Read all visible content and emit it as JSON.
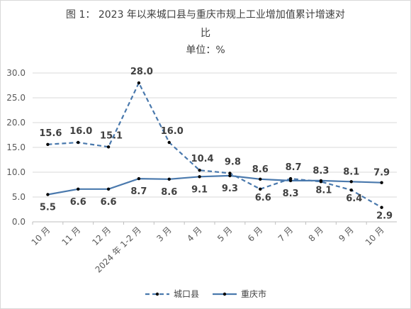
{
  "chart_data": {
    "type": "line",
    "title_line1": "图 1：  2023 年以来城口县与重庆市规上工业增加值累计增速对",
    "title_line2": "比",
    "title_line3": "单位：%",
    "categories": [
      "10 月",
      "11 月",
      "12 月",
      "2024 年 1-2 月",
      "3 月",
      "4 月",
      "5 月",
      "6 月",
      "7 月",
      "8 月",
      "9 月",
      "10 月"
    ],
    "y_ticks": [
      "0.0",
      "5.0",
      "10.0",
      "15.0",
      "20.0",
      "25.0",
      "30.0"
    ],
    "ylim": [
      0,
      30
    ],
    "series": [
      {
        "name": "城口县",
        "style": "dashed",
        "color": "#4a79ad",
        "values": [
          15.6,
          16.0,
          15.1,
          28.0,
          16.0,
          10.4,
          9.8,
          6.6,
          8.7,
          8.1,
          6.4,
          2.9
        ],
        "labels": [
          "15.6",
          "16.0",
          "15.1",
          "28.0",
          "16.0",
          "10.4",
          "9.8",
          "6.6",
          "8.7",
          "8.1",
          "6.4",
          "2.9"
        ]
      },
      {
        "name": "重庆市",
        "style": "solid",
        "color": "#4a79ad",
        "values": [
          5.5,
          6.6,
          6.6,
          8.7,
          8.6,
          9.1,
          9.3,
          8.6,
          8.3,
          8.3,
          8.1,
          7.9
        ],
        "labels": [
          "5.5",
          "6.6",
          "6.6",
          "8.7",
          "8.6",
          "9.1",
          "9.3",
          "8.6",
          "8.3",
          "8.3",
          "8.1",
          "7.9"
        ]
      }
    ],
    "legend_position": "bottom"
  }
}
